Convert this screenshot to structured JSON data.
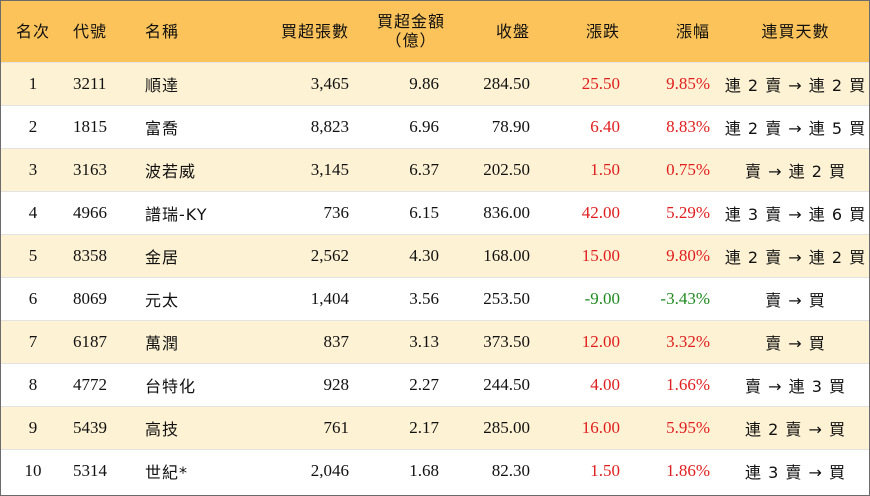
{
  "headers": {
    "rank": "名次",
    "code": "代號",
    "name": "名稱",
    "net_lots": "買超張數",
    "net_amount_line1": "買超金額",
    "net_amount_line2": "（億）",
    "close": "收盤",
    "change": "漲跌",
    "change_pct": "漲幅",
    "streak": "連買天數"
  },
  "rows": [
    {
      "rank": "1",
      "code": "3211",
      "name": "順達",
      "net_lots": "3,465",
      "net_amount": "9.86",
      "close": "284.50",
      "change": "25.50",
      "change_pct": "9.85%",
      "streak": "連 2 賣 → 連 2 買",
      "dir": "up"
    },
    {
      "rank": "2",
      "code": "1815",
      "name": "富喬",
      "net_lots": "8,823",
      "net_amount": "6.96",
      "close": "78.90",
      "change": "6.40",
      "change_pct": "8.83%",
      "streak": "連 2 賣 → 連 5 買",
      "dir": "up"
    },
    {
      "rank": "3",
      "code": "3163",
      "name": "波若威",
      "net_lots": "3,145",
      "net_amount": "6.37",
      "close": "202.50",
      "change": "1.50",
      "change_pct": "0.75%",
      "streak": "賣 → 連 2 買",
      "dir": "up"
    },
    {
      "rank": "4",
      "code": "4966",
      "name": "譜瑞-KY",
      "net_lots": "736",
      "net_amount": "6.15",
      "close": "836.00",
      "change": "42.00",
      "change_pct": "5.29%",
      "streak": "連 3 賣 → 連 6 買",
      "dir": "up"
    },
    {
      "rank": "5",
      "code": "8358",
      "name": "金居",
      "net_lots": "2,562",
      "net_amount": "4.30",
      "close": "168.00",
      "change": "15.00",
      "change_pct": "9.80%",
      "streak": "連 2 賣 → 連 2 買",
      "dir": "up"
    },
    {
      "rank": "6",
      "code": "8069",
      "name": "元太",
      "net_lots": "1,404",
      "net_amount": "3.56",
      "close": "253.50",
      "change": "-9.00",
      "change_pct": "-3.43%",
      "streak": "賣 → 買",
      "dir": "down"
    },
    {
      "rank": "7",
      "code": "6187",
      "name": "萬潤",
      "net_lots": "837",
      "net_amount": "3.13",
      "close": "373.50",
      "change": "12.00",
      "change_pct": "3.32%",
      "streak": "賣 → 買",
      "dir": "up"
    },
    {
      "rank": "8",
      "code": "4772",
      "name": "台特化",
      "net_lots": "928",
      "net_amount": "2.27",
      "close": "244.50",
      "change": "4.00",
      "change_pct": "1.66%",
      "streak": "賣 → 連 3 買",
      "dir": "up"
    },
    {
      "rank": "9",
      "code": "5439",
      "name": "高技",
      "net_lots": "761",
      "net_amount": "2.17",
      "close": "285.00",
      "change": "16.00",
      "change_pct": "5.95%",
      "streak": "連 2 賣 → 買",
      "dir": "up"
    },
    {
      "rank": "10",
      "code": "5314",
      "name": "世紀*",
      "net_lots": "2,046",
      "net_amount": "1.68",
      "close": "82.30",
      "change": "1.50",
      "change_pct": "1.86%",
      "streak": "連 3 賣 → 買",
      "dir": "up"
    }
  ],
  "colors": {
    "header_bg": "#fbc35a",
    "stripe_bg": "#fdf2d4",
    "up": "#e01e1e",
    "down": "#1f8a1f"
  }
}
